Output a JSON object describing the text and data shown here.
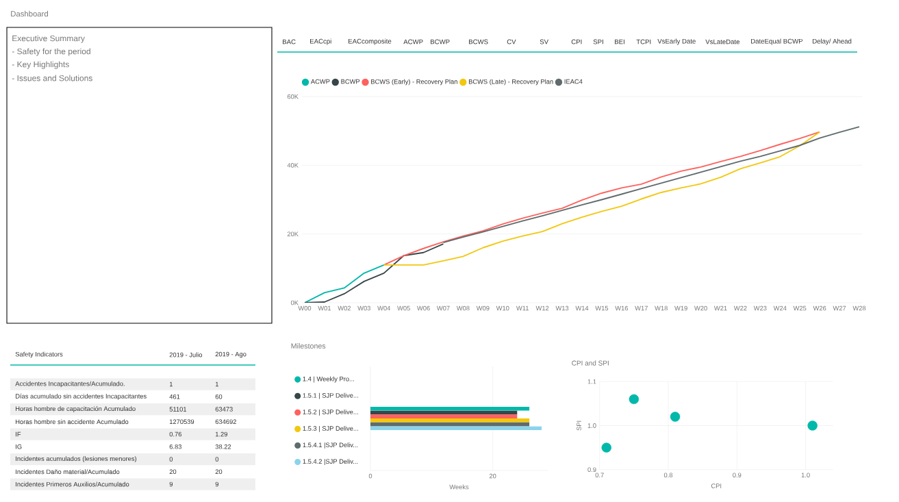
{
  "chart_data": [
    {
      "type": "other",
      "title": "Dashboard",
      "annotations": [
        "Executive Summary",
        "- Safety for the period",
        "- Key Highlights",
        "- Issues and Solutions"
      ]
    },
    {
      "type": "other",
      "annotations": [
        "BAC",
        "EACcpi",
        "EACcomposite",
        "ACWP",
        "BCWP",
        "BCWS",
        "CV",
        "SV",
        "CPI",
        "SPI",
        "BEI",
        "TCPI",
        "VsEarly Date",
        "VsLateDate",
        "DateEqual BCWP",
        "Delay/ Ahead"
      ]
    },
    {
      "type": "line",
      "categories": [
        "W00",
        "W01",
        "W02",
        "W03",
        "W04",
        "W05",
        "W06",
        "W07",
        "W08",
        "W09",
        "W10",
        "W11",
        "W12",
        "W13",
        "W14",
        "W15",
        "W16",
        "W17",
        "W18",
        "W19",
        "W20",
        "W21",
        "W22",
        "W23",
        "W24",
        "W25",
        "W26",
        "W27",
        "W28"
      ],
      "series": [
        {
          "name": "ACWP",
          "color": "#01b8aa",
          "values": [
            0,
            2900,
            4300,
            8600,
            11000,
            null,
            null,
            null,
            null,
            null,
            null,
            null,
            null,
            null,
            null,
            null,
            null,
            null,
            null,
            null,
            null,
            null,
            null,
            null,
            null,
            null,
            null,
            null,
            null
          ]
        },
        {
          "name": "BCWP",
          "color": "#374649",
          "values": [
            0,
            200,
            2600,
            6200,
            8600,
            13700,
            14600,
            17100,
            null,
            null,
            null,
            null,
            null,
            null,
            null,
            null,
            null,
            null,
            null,
            null,
            null,
            null,
            null,
            null,
            null,
            null,
            null,
            null,
            null
          ]
        },
        {
          "name": "BCWS (Early) - Recovery Plan",
          "color": "#fd625e",
          "values": [
            null,
            null,
            null,
            null,
            11000,
            13700,
            15800,
            17700,
            19400,
            20900,
            22900,
            24600,
            26100,
            27500,
            29900,
            31900,
            33400,
            34500,
            36600,
            38300,
            39500,
            41100,
            42600,
            44300,
            46100,
            47800,
            49700,
            null,
            null
          ]
        },
        {
          "name": "BCWS (Late) - Recovery Plan",
          "color": "#f2c80f",
          "values": [
            null,
            null,
            null,
            null,
            11000,
            11000,
            11000,
            12200,
            13500,
            16000,
            17900,
            19400,
            20700,
            23000,
            24900,
            26600,
            28100,
            30200,
            32100,
            33400,
            34600,
            36500,
            39000,
            40700,
            42500,
            45700,
            49700,
            null,
            null
          ]
        },
        {
          "name": "IEAC4",
          "color": "#5f6b6d",
          "values": [
            null,
            null,
            null,
            null,
            null,
            null,
            null,
            17500,
            19100,
            20600,
            22200,
            23800,
            25300,
            26900,
            28500,
            30000,
            31600,
            33200,
            34800,
            36400,
            38000,
            39600,
            41200,
            42600,
            44200,
            45800,
            47900,
            49600,
            51200
          ]
        }
      ],
      "ylim": [
        0,
        60000
      ],
      "yticks": [
        {
          "value": 0,
          "label": "0K"
        },
        {
          "value": 20000,
          "label": "20K"
        },
        {
          "value": 40000,
          "label": "40K"
        },
        {
          "value": 60000,
          "label": "60K"
        }
      ],
      "grid": "y",
      "legend": "top left",
      "line_style": "solid",
      "marker": "none"
    },
    {
      "type": "other",
      "title": "Safety Indicators",
      "categories": [
        "Accidentes Incapacitantes/Acumulado.",
        "Días acumulado sin accidentes Incapacitantes",
        "Horas hombre de capacitación Acumulado",
        "Horas hombre sin accidente Acumulado",
        "IF",
        "IG",
        "Incidentes acumulados (lesiones menores)",
        "Incidentes Daño material/Acumulado",
        "Incidentes Primeros Auxilios/Acumulado"
      ],
      "series": [
        {
          "name": "2019 - Julio",
          "values": [
            1,
            461,
            51101,
            1270539,
            0.76,
            6.83,
            0,
            20,
            9
          ]
        },
        {
          "name": "2019 - Ago",
          "values": [
            1,
            60,
            63473,
            634692,
            1.29,
            38.22,
            0,
            20,
            9
          ]
        }
      ],
      "data_labels": true
    },
    {
      "type": "bar",
      "title": "Milestones",
      "orientation": "horizontal",
      "categories": [
        null
      ],
      "series": [
        {
          "name": "1.4 | Weekly Pro...",
          "color": "#01b8aa",
          "values": [
            26
          ]
        },
        {
          "name": "1.5.1 | SJP Delive...",
          "color": "#374649",
          "values": [
            24
          ]
        },
        {
          "name": "1.5.2 | SJP Delive...",
          "color": "#fd625e",
          "values": [
            24
          ]
        },
        {
          "name": "1.5.3 | SJP Delive...",
          "color": "#f2c80f",
          "values": [
            26
          ]
        },
        {
          "name": "1.5.4.1 |SJP Deliv...",
          "color": "#5f6b6d",
          "values": [
            26
          ]
        },
        {
          "name": "1.5.4.2 |SJP Deliv...",
          "color": "#8ad4eb",
          "values": [
            28
          ]
        }
      ],
      "xlabel": "Weeks",
      "xlim": [
        0,
        29
      ],
      "xticks": [
        0,
        20
      ],
      "grid": "x",
      "legend": "left"
    },
    {
      "type": "scatter",
      "title": "CPI and SPI",
      "xlabel": "CPI",
      "ylabel": "SPI",
      "color": "#01b8aa",
      "marker": "circle",
      "x": [
        0.71,
        0.75,
        0.81,
        1.01
      ],
      "values": [
        0.95,
        1.06,
        1.02,
        1.0
      ],
      "xlim": [
        0.7,
        1.04
      ],
      "ylim": [
        0.9,
        1.1
      ],
      "xticks": [
        0.7,
        0.8,
        0.9,
        {
          "value": 1.0,
          "label": "1.0"
        }
      ],
      "yticks": [
        0.9,
        {
          "value": 1.0,
          "label": "1.0"
        },
        1.1
      ],
      "grid": true
    }
  ]
}
